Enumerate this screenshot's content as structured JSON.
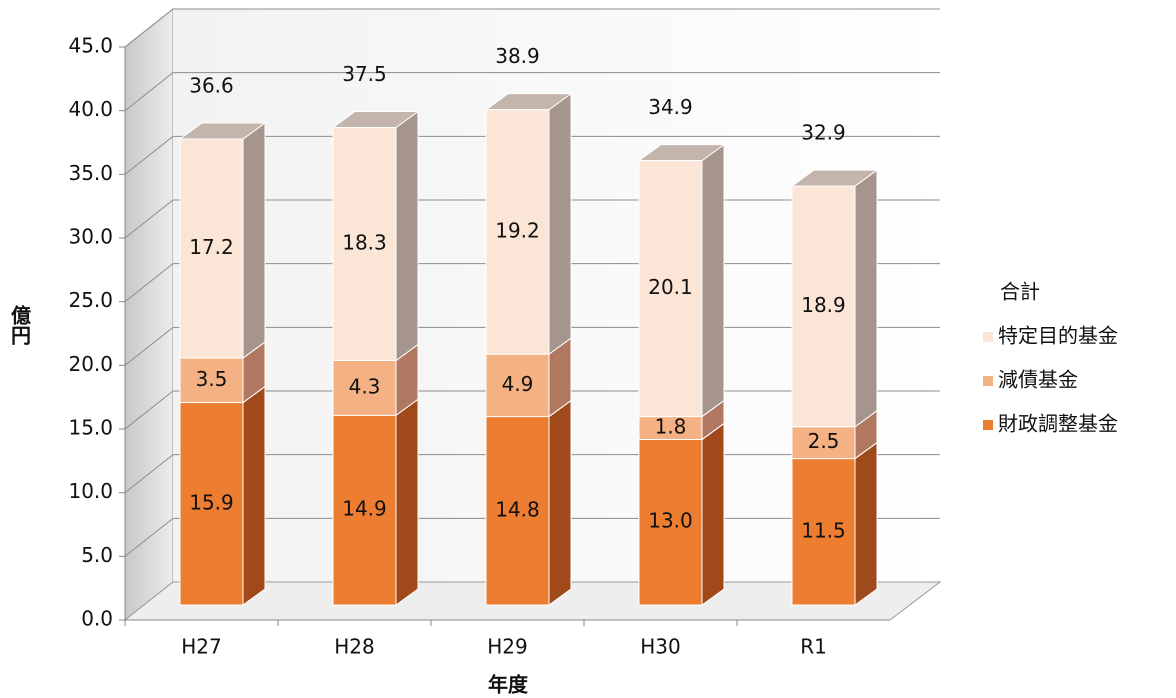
{
  "chart_data": {
    "type": "bar3d_stacked",
    "categories": [
      "H27",
      "H28",
      "H29",
      "H30",
      "R1"
    ],
    "series": [
      {
        "name": "財政調整基金",
        "color": "#ed7d31",
        "values": [
          15.9,
          14.9,
          14.8,
          13.0,
          11.5
        ],
        "value_labels": [
          "15.9",
          "14.9",
          "14.8",
          "13.0",
          "11.5"
        ]
      },
      {
        "name": "減債基金",
        "color": "#f4b183",
        "values": [
          3.5,
          4.3,
          4.9,
          1.8,
          2.5
        ]
      },
      {
        "name": "特定目的基金",
        "color": "#fbe5d6",
        "values": [
          17.2,
          18.3,
          19.2,
          20.1,
          18.9
        ]
      }
    ],
    "totals": {
      "name": "合計",
      "values": [
        36.6,
        37.5,
        38.9,
        34.9,
        32.9
      ]
    },
    "ylim": [
      0,
      45
    ],
    "yticks": [
      {
        "value": 0,
        "label": "0.0"
      },
      {
        "value": 5,
        "label": "5.0"
      },
      {
        "value": 10,
        "label": "10.0"
      },
      {
        "value": 15,
        "label": "15.0"
      },
      {
        "value": 20,
        "label": "20.0"
      },
      {
        "value": 25,
        "label": "25.0"
      },
      {
        "value": 30,
        "label": "30.0"
      },
      {
        "value": 35,
        "label": "35.0"
      },
      {
        "value": 40,
        "label": "40.0"
      },
      {
        "value": 45,
        "label": "45.0"
      }
    ],
    "y_label": "億円",
    "x_label": "年度",
    "grid": true,
    "legend": "right"
  }
}
